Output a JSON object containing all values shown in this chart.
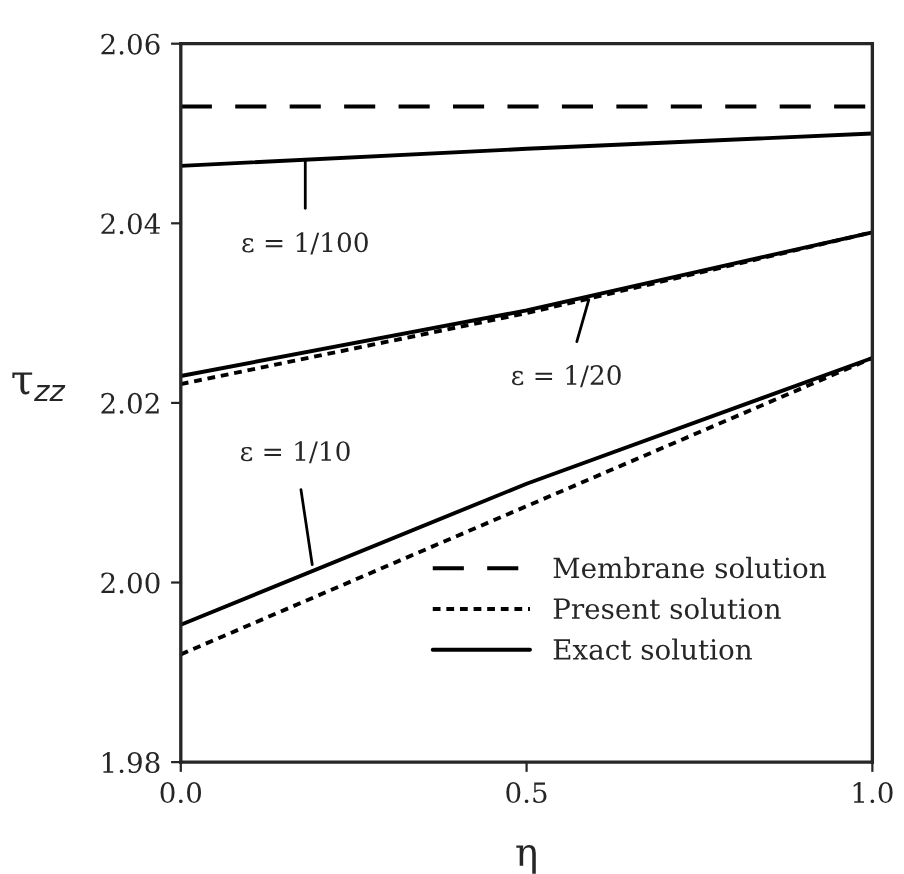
{
  "chart_data": {
    "type": "line",
    "xlabel": "η",
    "ylabel": "τ$_{zz}$",
    "xlim": [
      0.0,
      1.0
    ],
    "ylim": [
      1.98,
      2.06
    ],
    "xticks": [
      {
        "value": 0.0,
        "label": "0.0"
      },
      {
        "value": 0.5,
        "label": "0.5"
      },
      {
        "value": 1.0,
        "label": "1.0"
      }
    ],
    "yticks": [
      1.98,
      {
        "value": 2.0,
        "label": "2.00"
      },
      2.02,
      2.04,
      2.06
    ],
    "x": [
      0.0,
      0.5,
      1.0
    ],
    "series": [
      {
        "name": "Membrane solution",
        "color": "#000000",
        "line_style": "dashed",
        "values": [
          2.053,
          2.053,
          2.053
        ]
      },
      {
        "name": "Present solution",
        "color": "#000000",
        "line_style": "dotted",
        "values": [
          2.0221,
          2.03,
          2.039
        ]
      },
      {
        "name": "Exact solution",
        "color": "#000000",
        "line_style": "solid",
        "values": [
          2.0464,
          2.0483,
          2.05
        ]
      },
      {
        "color": "#000000",
        "line_style": "solid",
        "values": [
          2.023,
          2.0303,
          2.039
        ]
      },
      {
        "color": "#000000",
        "line_style": "dotted",
        "values": [
          1.992,
          2.0085,
          2.025
        ]
      },
      {
        "color": "#000000",
        "line_style": "solid",
        "values": [
          1.9953,
          2.011,
          2.025
        ]
      }
    ],
    "annotations": [
      {
        "text": "ε = 1/100",
        "x": 0.18,
        "y": 2.0469
      },
      {
        "text": "ε = 1/20",
        "x": 0.59,
        "y": 2.0315
      },
      {
        "text": "ε = 1/10",
        "x": 0.19,
        "y": 2.002
      }
    ],
    "legend": "bottom right",
    "grid": false
  }
}
